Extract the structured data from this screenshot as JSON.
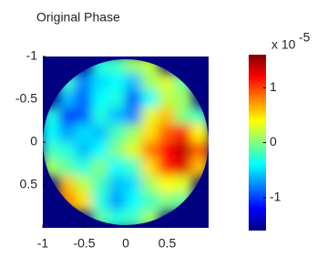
{
  "chart_data": {
    "type": "heatmap",
    "title": "Original Phase",
    "x": [
      -0.9,
      -0.7,
      -0.5,
      -0.3,
      -0.1,
      0.1,
      0.3,
      0.5,
      0.7,
      0.9
    ],
    "y": [
      -0.9,
      -0.7,
      -0.5,
      -0.3,
      -0.1,
      0.1,
      0.3,
      0.5,
      0.7,
      0.9
    ],
    "values": [
      [
        null,
        null,
        null,
        -0.3,
        -0.2,
        0.1,
        0.2,
        null,
        null,
        null
      ],
      [
        null,
        -0.2,
        -0.8,
        -0.5,
        -0.4,
        -0.6,
        0.1,
        0.3,
        -0.1,
        null
      ],
      [
        null,
        -0.6,
        -0.9,
        -0.4,
        -0.3,
        -0.9,
        -0.4,
        0.2,
        0.1,
        null
      ],
      [
        -0.3,
        -1.0,
        -0.9,
        -0.3,
        -0.6,
        -0.8,
        0.3,
        0.6,
        0.0,
        -0.2
      ],
      [
        -0.4,
        -0.7,
        -0.5,
        -0.6,
        -0.2,
        0.1,
        0.5,
        0.9,
        1.1,
        0.4
      ],
      [
        -0.2,
        -0.3,
        -0.6,
        -0.4,
        0.0,
        0.3,
        0.8,
        1.2,
        1.4,
        0.9
      ],
      [
        0.1,
        -0.1,
        -0.3,
        0.0,
        -0.4,
        -0.2,
        0.5,
        1.1,
        1.3,
        0.6
      ],
      [
        null,
        0.6,
        0.2,
        -0.2,
        -0.6,
        -0.5,
        0.1,
        0.4,
        0.3,
        null
      ],
      [
        null,
        0.8,
        0.5,
        -0.3,
        -0.7,
        -0.4,
        -0.2,
        0.0,
        -0.1,
        null
      ],
      [
        null,
        null,
        null,
        -0.1,
        -0.3,
        -0.2,
        0.1,
        null,
        null,
        null
      ]
    ],
    "xlim": [
      -1,
      1
    ],
    "ylim": [
      -1,
      1
    ],
    "xticks": [
      -1,
      -0.5,
      0,
      0.5
    ],
    "yticks": [
      -1,
      -0.5,
      0,
      0.5
    ],
    "colormap": "jet",
    "clim": [
      -1.6,
      1.6
    ],
    "cticks": [
      -1,
      0,
      1
    ],
    "colorbar_multiplier": "x 10",
    "colorbar_exponent": "-5"
  }
}
